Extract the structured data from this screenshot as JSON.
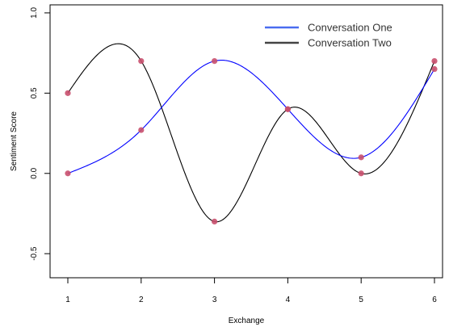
{
  "chart_data": {
    "type": "line",
    "xlabel": "Exchange",
    "ylabel": "Sentiment Score",
    "xlim": [
      1,
      6
    ],
    "ylim": [
      -0.65,
      1.05
    ],
    "x_ticks": [
      1,
      2,
      3,
      4,
      5,
      6
    ],
    "y_ticks": [
      -0.5,
      0.0,
      0.5,
      1.0
    ],
    "y_tick_labels": [
      "-0.5",
      "0.0",
      "0.5",
      "1.0"
    ],
    "grid": false,
    "legend_position": "top-right",
    "series": [
      {
        "name": "Conversation One",
        "color": "#0000ff",
        "legend_color": "#4a6cf0",
        "x": [
          1,
          2,
          3,
          4,
          5,
          6
        ],
        "values": [
          0.0,
          0.27,
          0.7,
          0.4,
          0.1,
          0.65
        ]
      },
      {
        "name": "Conversation Two",
        "color": "#000000",
        "legend_color": "#444444",
        "x": [
          1,
          2,
          3,
          4,
          5,
          6
        ],
        "values": [
          0.5,
          0.7,
          -0.3,
          0.4,
          0.0,
          0.7
        ]
      }
    ],
    "point_color": "#c9506e"
  }
}
